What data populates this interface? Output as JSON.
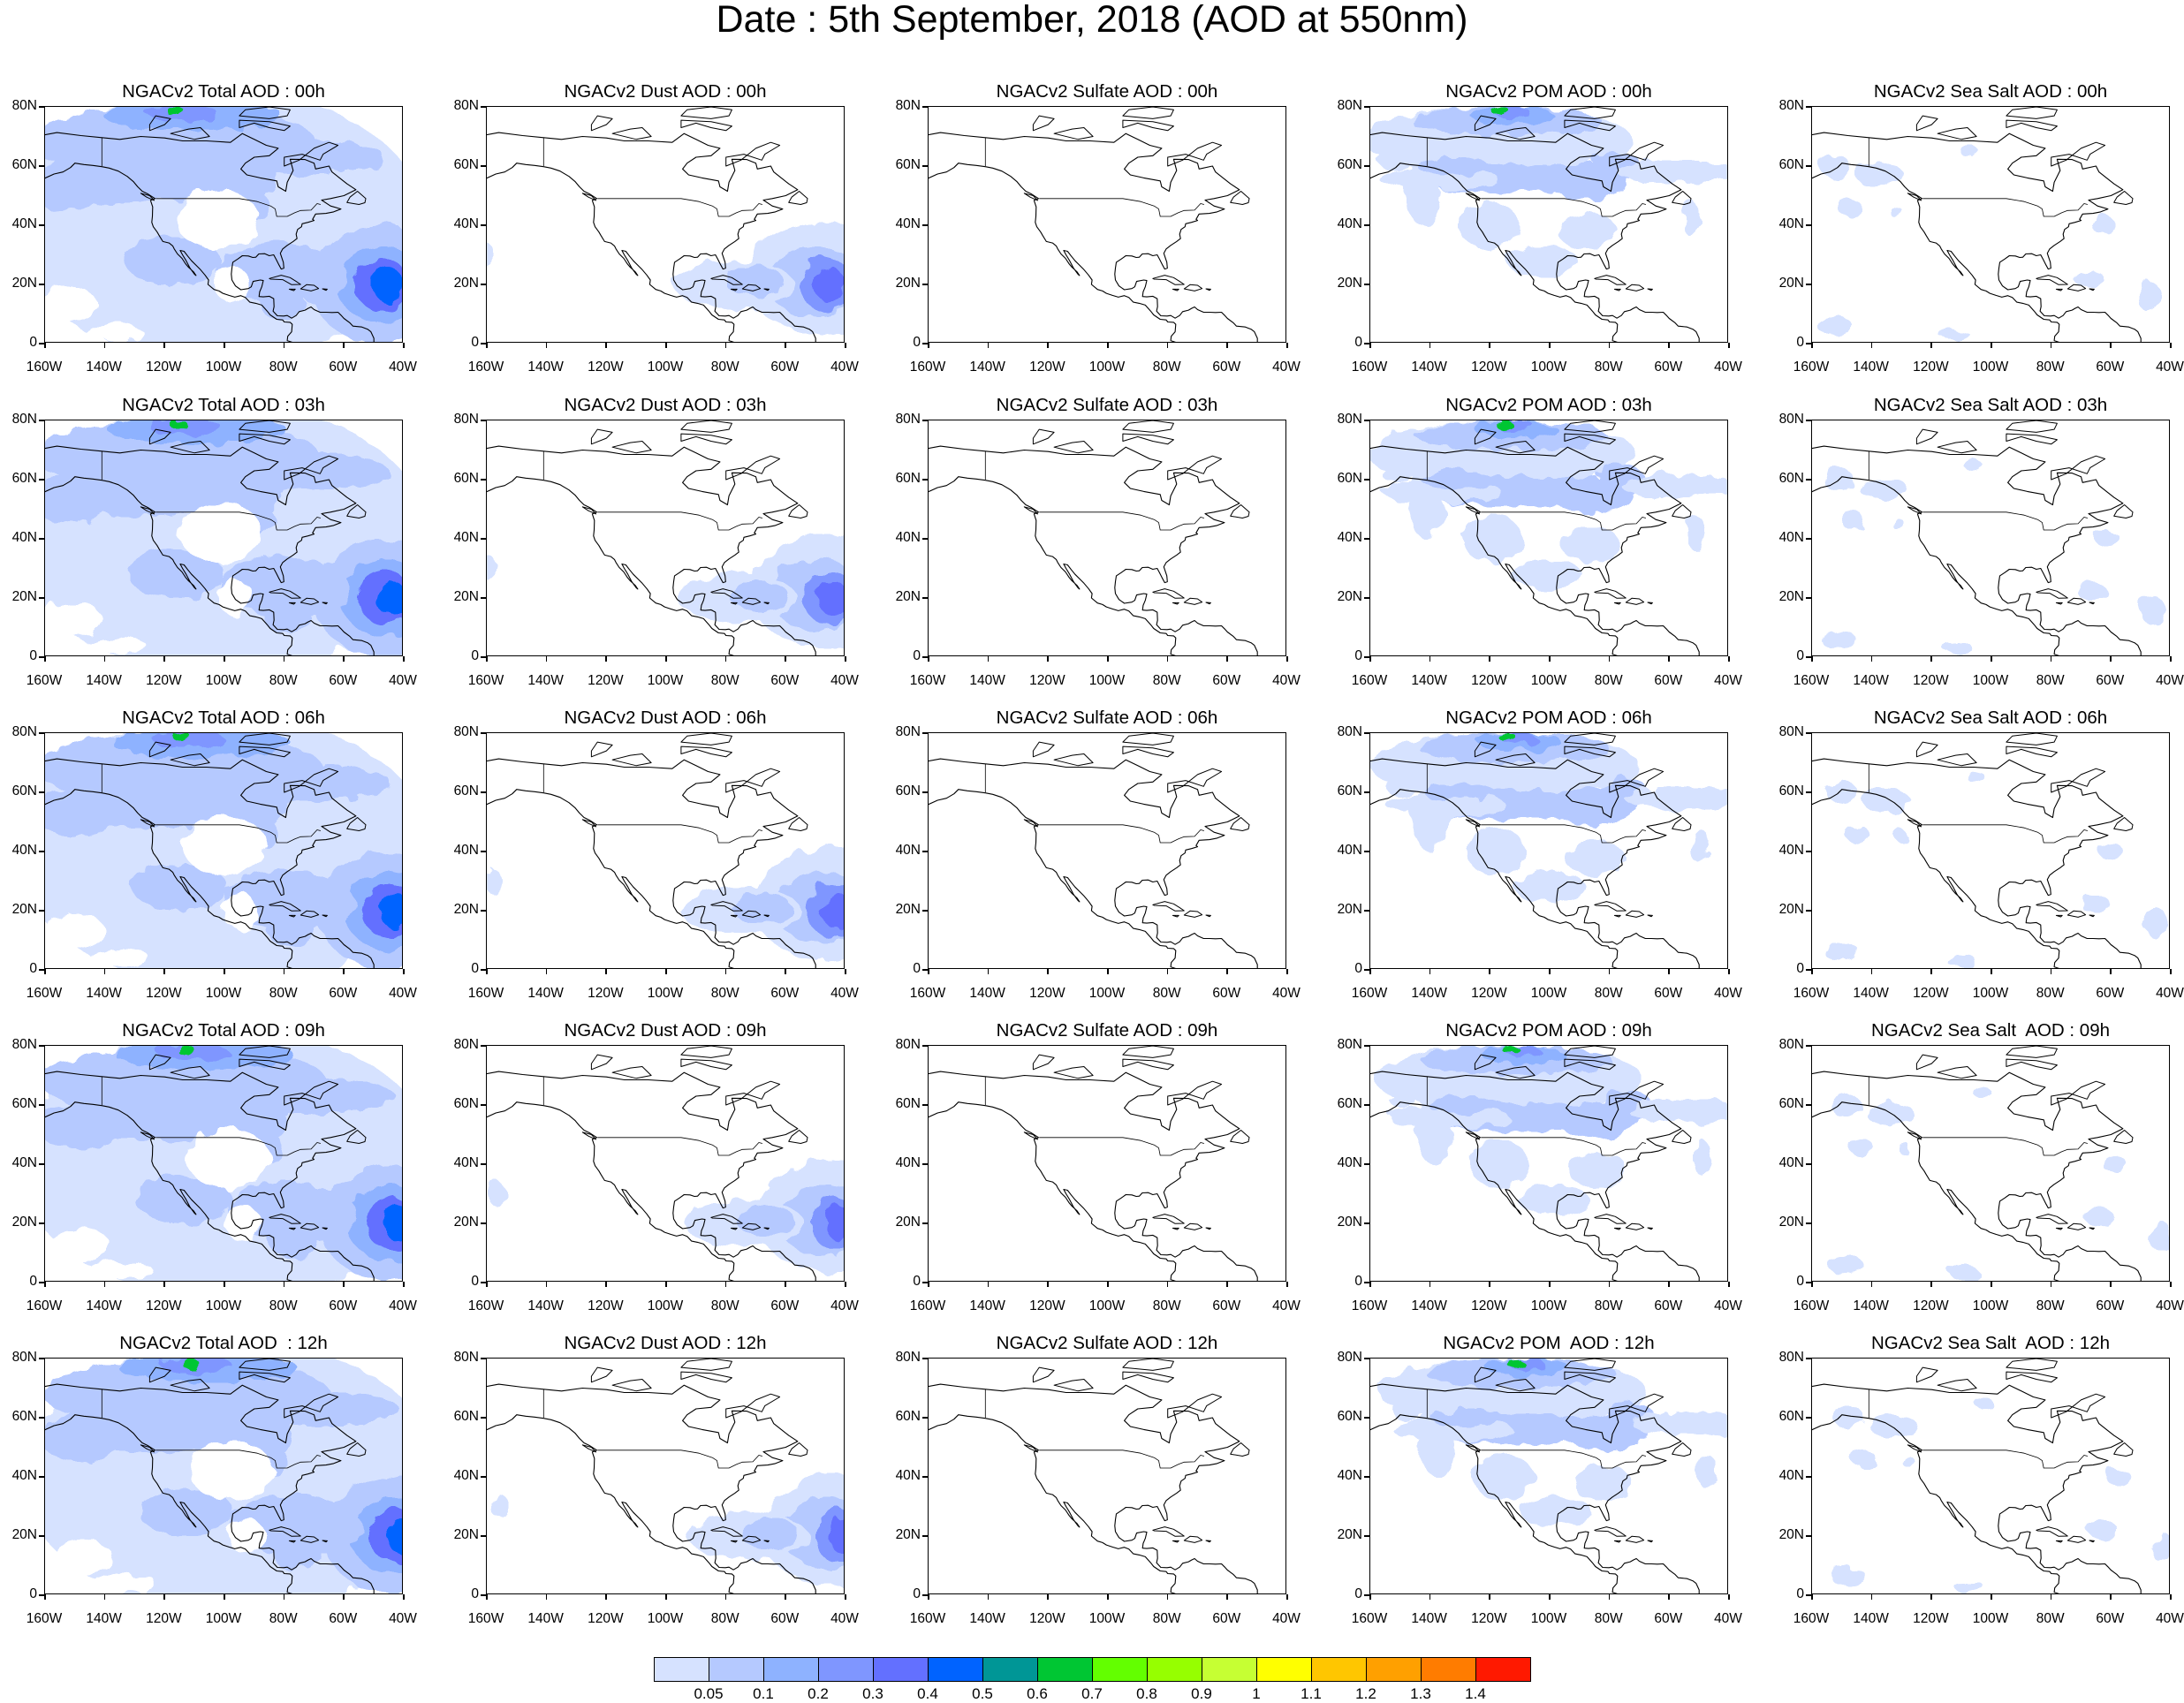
{
  "title": "Date : 5th September, 2018 (AOD at 550nm)",
  "panel_titles": [
    [
      "NGACv2 Total AOD : 00h",
      "NGACv2 Dust AOD : 00h",
      "NGACv2 Sulfate AOD : 00h",
      "NGACv2 POM AOD : 00h",
      "NGACv2 Sea Salt AOD : 00h"
    ],
    [
      "NGACv2 Total AOD : 03h",
      "NGACv2 Dust AOD : 03h",
      "NGACv2 Sulfate AOD : 03h",
      "NGACv2 POM AOD : 03h",
      "NGACv2 Sea Salt AOD : 03h"
    ],
    [
      "NGACv2 Total AOD : 06h",
      "NGACv2 Dust AOD : 06h",
      "NGACv2 Sulfate AOD : 06h",
      "NGACv2 POM AOD : 06h",
      "NGACv2 Sea Salt AOD : 06h"
    ],
    [
      "NGACv2 Total AOD : 09h",
      "NGACv2 Dust AOD : 09h",
      "NGACv2 Sulfate AOD : 09h",
      "NGACv2 POM AOD : 09h",
      "NGACv2 Sea Salt  AOD : 09h"
    ],
    [
      "NGACv2 Total AOD  : 12h",
      "NGACv2 Dust AOD : 12h",
      "NGACv2 Sulfate AOD : 12h",
      "NGACv2 POM  AOD : 12h",
      "NGACv2 Sea Salt  AOD : 12h"
    ]
  ],
  "lat_labels": [
    "80N",
    "60N",
    "40N",
    "20N",
    "0"
  ],
  "lon_labels": [
    "160W",
    "140W",
    "120W",
    "100W",
    "80W",
    "60W",
    "40W"
  ],
  "map_extent": {
    "lon": [
      -160,
      -40
    ],
    "lat": [
      0,
      80
    ]
  },
  "colorbar": {
    "labels": [
      "0.05",
      "0.1",
      "0.2",
      "0.3",
      "0.4",
      "0.5",
      "0.6",
      "0.7",
      "0.8",
      "0.9",
      "1",
      "1.1",
      "1.2",
      "1.3",
      "1.4"
    ],
    "colors": [
      "#ffffff",
      "#d6e2ff",
      "#b5c9ff",
      "#8eb2ff",
      "#7f96ff",
      "#6370ff",
      "#0063ff",
      "#009696",
      "#00c633",
      "#63ff00",
      "#96ff00",
      "#c6ff33",
      "#ffff00",
      "#ffc600",
      "#ffa000",
      "#ff7c00",
      "#ff1900"
    ]
  },
  "chart_data": {
    "type": "heatmap",
    "title": "Date : 5th September, 2018 (AOD at 550nm)",
    "rows_forecast_hour": [
      "00h",
      "03h",
      "06h",
      "09h",
      "12h"
    ],
    "columns_species": [
      "Total",
      "Dust",
      "Sulfate",
      "POM",
      "Sea Salt"
    ],
    "xlim": [
      -160,
      -40
    ],
    "ylim": [
      0,
      80
    ],
    "features_aod_approx": [
      {
        "species": "Total",
        "region": "Central Atlantic 20N 45W",
        "aod": 0.6
      },
      {
        "species": "Total",
        "region": "Northern Canada 75N",
        "aod": 0.7
      },
      {
        "species": "Total",
        "region": "Background ocean",
        "aod": 0.1
      },
      {
        "species": "Dust",
        "region": "Central Atlantic 20N 45W",
        "aod": 0.5
      },
      {
        "species": "Dust",
        "region": "Caribbean",
        "aod": 0.2
      },
      {
        "species": "Sulfate",
        "region": "Domain",
        "aod": 0.05
      },
      {
        "species": "POM",
        "region": "Northern Canada 75N",
        "aod": 0.6
      },
      {
        "species": "POM",
        "region": "Canada 55N band",
        "aod": 0.3
      },
      {
        "species": "Sea Salt",
        "region": "Scattered ocean",
        "aod": 0.1
      }
    ]
  }
}
